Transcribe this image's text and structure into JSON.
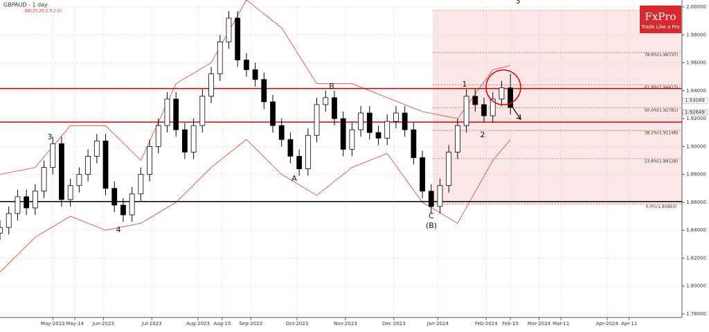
{
  "chart_data": {
    "type": "candlestick",
    "title": "GBPAUD - 1 day",
    "subtitle": "BB(20,20,2.0,2.0)",
    "brand": "FxPro",
    "brand_tagline": "Trade Like a Pro",
    "x": [
      0,
      4,
      8,
      12,
      16,
      20,
      24,
      28,
      32,
      36,
      40,
      44,
      48,
      52,
      56,
      60,
      64,
      68,
      72,
      76,
      80,
      84,
      88,
      92,
      96,
      100,
      104,
      108,
      112,
      116,
      120,
      124,
      128,
      132,
      136,
      140,
      144,
      148,
      152,
      156,
      160,
      164,
      168,
      172,
      176,
      180,
      184,
      188,
      192,
      196,
      200,
      204,
      208,
      212,
      216,
      220,
      224,
      228,
      232
    ],
    "open": [
      1.838,
      1.842,
      1.852,
      1.864,
      1.856,
      1.868,
      1.885,
      1.902,
      1.862,
      1.872,
      1.88,
      1.893,
      1.904,
      1.87,
      1.858,
      1.851,
      1.866,
      1.88,
      1.9,
      1.915,
      1.934,
      1.912,
      1.896,
      1.915,
      1.936,
      1.952,
      1.975,
      1.992,
      1.962,
      1.955,
      1.948,
      1.932,
      1.915,
      1.905,
      1.893,
      1.884,
      1.908,
      1.93,
      1.935,
      1.92,
      1.898,
      1.912,
      1.924,
      1.91,
      1.906,
      1.918,
      1.924,
      1.912,
      1.892,
      1.868,
      1.857,
      1.872,
      1.896,
      1.915,
      1.936,
      1.93,
      1.922,
      1.934,
      1.942
    ],
    "high": [
      1.847,
      1.857,
      1.869,
      1.869,
      1.873,
      1.89,
      1.907,
      1.907,
      1.877,
      1.885,
      1.898,
      1.909,
      1.909,
      1.875,
      1.863,
      1.871,
      1.885,
      1.905,
      1.92,
      1.939,
      1.939,
      1.917,
      1.92,
      1.941,
      1.957,
      1.98,
      1.997,
      1.997,
      1.967,
      1.96,
      1.953,
      1.937,
      1.92,
      1.91,
      1.898,
      1.913,
      1.935,
      1.94,
      1.94,
      1.925,
      1.917,
      1.929,
      1.929,
      1.915,
      1.923,
      1.929,
      1.929,
      1.917,
      1.897,
      1.873,
      1.877,
      1.901,
      1.92,
      1.941,
      1.941,
      1.935,
      1.939,
      1.947,
      1.952
    ],
    "low": [
      1.833,
      1.837,
      1.847,
      1.851,
      1.851,
      1.863,
      1.88,
      1.857,
      1.857,
      1.867,
      1.875,
      1.888,
      1.865,
      1.853,
      1.846,
      1.846,
      1.861,
      1.875,
      1.895,
      1.91,
      1.907,
      1.891,
      1.891,
      1.91,
      1.931,
      1.947,
      1.97,
      1.957,
      1.95,
      1.943,
      1.927,
      1.91,
      1.9,
      1.888,
      1.879,
      1.879,
      1.903,
      1.925,
      1.915,
      1.893,
      1.893,
      1.907,
      1.905,
      1.901,
      1.901,
      1.913,
      1.907,
      1.887,
      1.863,
      1.852,
      1.852,
      1.867,
      1.891,
      1.91,
      1.925,
      1.917,
      1.917,
      1.929,
      1.923
    ],
    "close": [
      1.842,
      1.852,
      1.864,
      1.856,
      1.868,
      1.885,
      1.902,
      1.862,
      1.872,
      1.88,
      1.893,
      1.904,
      1.87,
      1.858,
      1.851,
      1.866,
      1.88,
      1.9,
      1.915,
      1.934,
      1.912,
      1.896,
      1.915,
      1.936,
      1.952,
      1.975,
      1.992,
      1.962,
      1.955,
      1.948,
      1.932,
      1.915,
      1.905,
      1.893,
      1.884,
      1.908,
      1.93,
      1.935,
      1.92,
      1.898,
      1.912,
      1.924,
      1.91,
      1.906,
      1.918,
      1.924,
      1.912,
      1.892,
      1.868,
      1.857,
      1.872,
      1.896,
      1.915,
      1.936,
      1.93,
      1.922,
      1.934,
      1.942,
      1.928
    ],
    "bands": {
      "color": "#e8382f",
      "x": [
        0,
        16,
        32,
        48,
        64,
        80,
        96,
        112,
        128,
        144,
        160,
        176,
        192,
        208,
        224,
        232
      ],
      "upper": [
        1.88,
        1.885,
        1.915,
        1.915,
        1.89,
        1.945,
        1.96,
        2.005,
        1.985,
        1.945,
        1.945,
        1.935,
        1.925,
        1.92,
        1.955,
        1.958
      ],
      "lower": [
        1.81,
        1.835,
        1.85,
        1.84,
        1.845,
        1.86,
        1.885,
        1.905,
        1.88,
        1.865,
        1.885,
        1.895,
        1.86,
        1.845,
        1.89,
        1.905
      ]
    },
    "hlines": [
      {
        "value": 1.9415,
        "color": "#e00000"
      },
      {
        "value": 1.9175,
        "color": "#e00000"
      },
      {
        "value": 1.8606,
        "color": "#000000"
      }
    ],
    "fib_levels": [
      {
        "value": 1.96737,
        "label": "78.6%(1.96737)"
      },
      {
        "value": 1.94413,
        "label": "61.8%(1.94413)"
      },
      {
        "value": 1.92781,
        "label": "50.0%(1.92781)"
      },
      {
        "value": 1.91148,
        "label": "38.2%(1.91148)"
      },
      {
        "value": 1.89128,
        "label": "23.6%(1.89128)"
      },
      {
        "value": 1.85863,
        "label": "0.0%(1.85863)"
      }
    ],
    "price_labels": [
      1.93089,
      1.92649
    ],
    "wave_labels": [
      "3",
      "4",
      "A",
      "B",
      "C",
      "(B)",
      "1",
      "2",
      "3"
    ],
    "xlim": [
      0,
      310
    ],
    "xticks": [
      {
        "value": 24,
        "label": "May-2023"
      },
      {
        "value": 34,
        "label": "May-14"
      },
      {
        "value": 47,
        "label": "Jun-2023"
      },
      {
        "value": 69,
        "label": "Jul-2023"
      },
      {
        "value": 90,
        "label": "Aug-2023"
      },
      {
        "value": 101,
        "label": "Aug-15"
      },
      {
        "value": 114,
        "label": "Sep-2023"
      },
      {
        "value": 135,
        "label": "Oct-2023"
      },
      {
        "value": 157,
        "label": "Nov-2023"
      },
      {
        "value": 179,
        "label": "Dec-2023"
      },
      {
        "value": 199,
        "label": "Jan-2024"
      },
      {
        "value": 221,
        "label": "Feb-2024"
      },
      {
        "value": 232,
        "label": "Feb-15"
      },
      {
        "value": 245,
        "label": "Mar-2024"
      },
      {
        "value": 255,
        "label": "Mar-11"
      },
      {
        "value": 276,
        "label": "Apr-2024"
      },
      {
        "value": 286,
        "label": "Apr-11"
      }
    ],
    "ylim": [
      1.78,
      2.0
    ],
    "yticks": [
      {
        "value": 1.78,
        "label": "1.78000"
      },
      {
        "value": 1.8,
        "label": "1.80000"
      },
      {
        "value": 1.82,
        "label": "1.82000"
      },
      {
        "value": 1.84,
        "label": "1.84000"
      },
      {
        "value": 1.86,
        "label": "1.86000"
      },
      {
        "value": 1.88,
        "label": "1.88000"
      },
      {
        "value": 1.9,
        "label": "1.90000"
      },
      {
        "value": 1.92,
        "label": "1.92000"
      },
      {
        "value": 1.94,
        "label": "1.94000"
      },
      {
        "value": 1.96,
        "label": "1.96000"
      },
      {
        "value": 1.98,
        "label": "1.98000"
      },
      {
        "value": 2.0,
        "label": "2.00000"
      }
    ],
    "grid": true
  }
}
